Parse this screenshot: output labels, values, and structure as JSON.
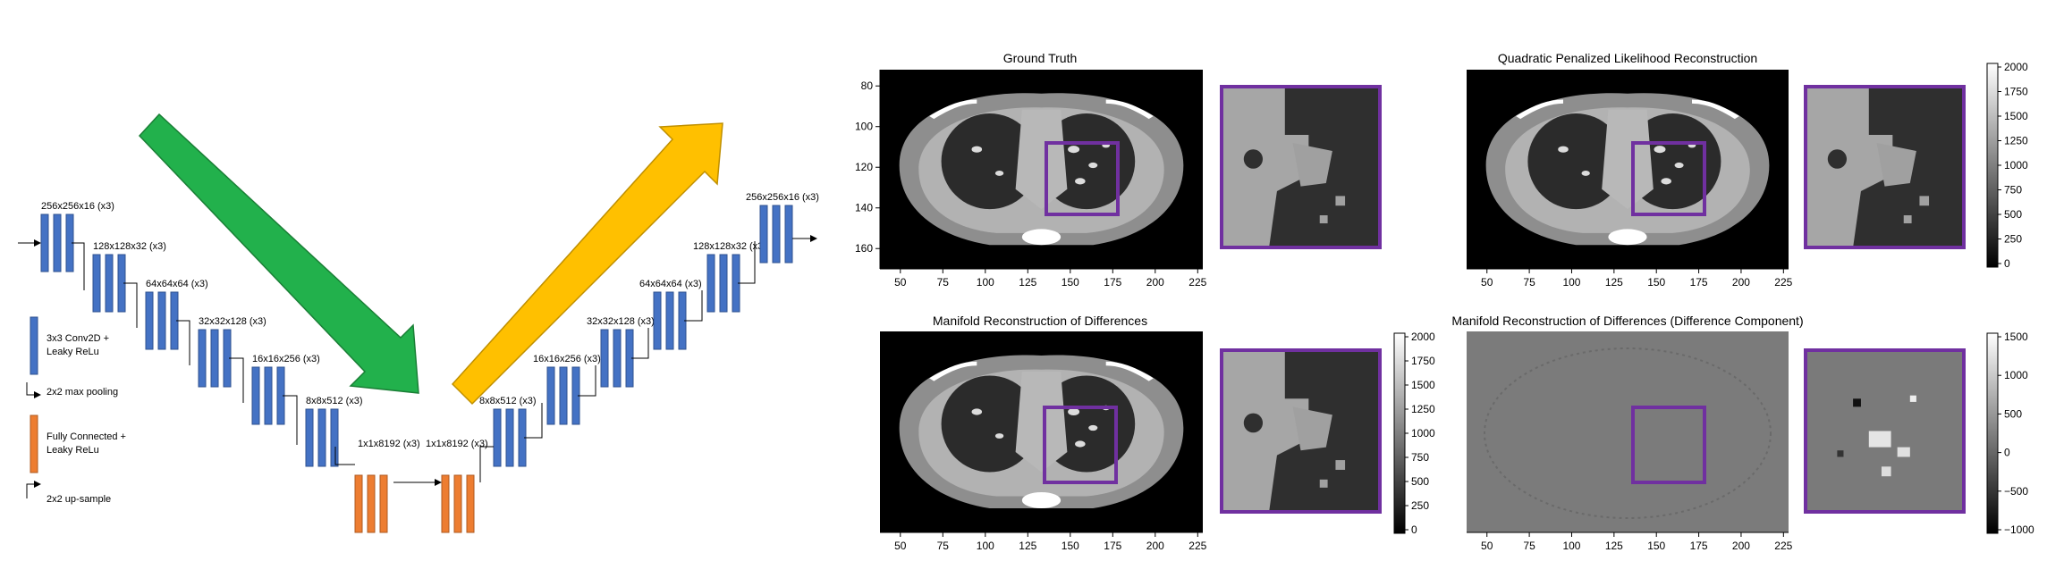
{
  "network": {
    "encoder_labels": [
      "256x256x16 (x3)",
      "128x128x32 (x3)",
      "64x64x64 (x3)",
      "32x32x128 (x3)",
      "16x16x256 (x3)",
      "8x8x512 (x3)"
    ],
    "fc_labels": [
      "1x1x8192 (x3)",
      "1x1x8192 (x3)"
    ],
    "decoder_labels": [
      "8x8x512 (x3)",
      "16x16x256 (x3)",
      "32x32x128 (x3)",
      "64x64x64 (x3)",
      "128x128x32 (x3)",
      "256x256x16 (x3)"
    ],
    "legend": {
      "conv_line1": "3x3 Conv2D +",
      "conv_line2": "Leaky ReLu",
      "pool": "2x2 max pooling",
      "fc_line1": "Fully Connected +",
      "fc_line2": "Leaky ReLu",
      "upsample": "2x2 up-sample"
    },
    "colors": {
      "conv": "#4472c4",
      "fc": "#ed7d31",
      "down_arrow": "#22b14c",
      "up_arrow": "#ffc000"
    }
  },
  "panels": {
    "ground_truth": {
      "title": "Ground Truth"
    },
    "quadratic": {
      "title": "Quadratic Penalized Likelihood Reconstruction"
    },
    "manifold": {
      "title": "Manifold Reconstruction of Differences"
    },
    "difference": {
      "title": "Manifold Reconstruction of Differences (Difference Component)"
    }
  },
  "axes": {
    "x_ticks": [
      "50",
      "75",
      "100",
      "125",
      "150",
      "175",
      "200",
      "225"
    ],
    "y_ticks": [
      "80",
      "100",
      "120",
      "140",
      "160"
    ]
  },
  "colorbars": {
    "top": [
      "2000",
      "1750",
      "1500",
      "1250",
      "1000",
      "750",
      "500",
      "250",
      "0"
    ],
    "bottom_left": [
      "2000",
      "1750",
      "1500",
      "1250",
      "1000",
      "750",
      "500",
      "250",
      "0"
    ],
    "bottom_right": [
      "1500",
      "1000",
      "500",
      "0",
      "−500",
      "−1000"
    ]
  },
  "roi_color": "#7030a0"
}
